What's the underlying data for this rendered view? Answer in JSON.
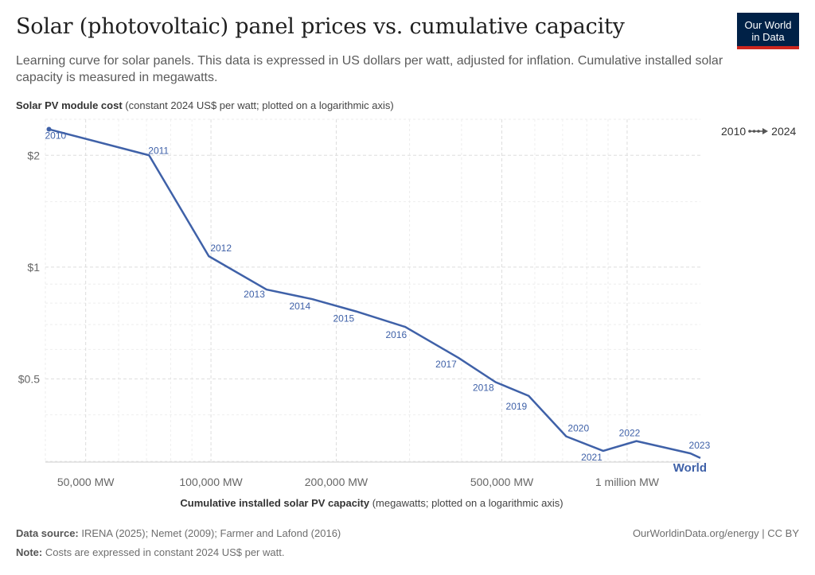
{
  "header": {
    "title": "Solar (photovoltaic) panel prices vs. cumulative capacity",
    "subtitle": "Learning curve for solar panels. This data is expressed in US dollars per watt, adjusted for inflation. Cumulative installed solar capacity is measured in megawatts."
  },
  "logo": {
    "line1": "Our World",
    "line2": "in Data",
    "bg_color": "#002147",
    "accent_color": "#ce261e"
  },
  "legend": {
    "start": "2010",
    "end": "2024"
  },
  "footer": {
    "source_label": "Data source:",
    "source_text": "IRENA (2025); Nemet (2009); Farmer and Lafond (2016)",
    "note_label": "Note:",
    "note_text": "Costs are expressed in constant 2024 US$ per watt.",
    "url": "OurWorldinData.org/energy | CC BY"
  },
  "chart_data": {
    "type": "line",
    "title": "Solar (photovoltaic) panel prices vs. cumulative capacity",
    "ylabel_bold": "Solar PV module cost",
    "ylabel_rest": "(constant 2024 US$ per watt; plotted on a logarithmic axis)",
    "xlabel_bold": "Cumulative installed solar PV capacity",
    "xlabel_rest": "(megawatts; plotted on a logarithmic axis)",
    "x_scale": "log",
    "y_scale": "log",
    "xlim": [
      40000,
      1500000
    ],
    "ylim": [
      0.3,
      2.5
    ],
    "x_ticks": [
      {
        "value": 50000,
        "label": "50,000 MW"
      },
      {
        "value": 100000,
        "label": "100,000 MW"
      },
      {
        "value": 200000,
        "label": "200,000 MW"
      },
      {
        "value": 500000,
        "label": "500,000 MW"
      },
      {
        "value": 1000000,
        "label": "1 million MW"
      }
    ],
    "y_ticks": [
      {
        "value": 2,
        "label": "$2"
      },
      {
        "value": 1,
        "label": "$1"
      },
      {
        "value": 0.5,
        "label": "$0.5"
      }
    ],
    "grid": true,
    "series": [
      {
        "name": "World",
        "color": "#3f61a8",
        "points": [
          {
            "year": "2010",
            "x": 40800,
            "y": 2.35
          },
          {
            "year": "2011",
            "x": 71000,
            "y": 2.0
          },
          {
            "year": "2012",
            "x": 98800,
            "y": 1.07
          },
          {
            "year": "2013",
            "x": 136000,
            "y": 0.87
          },
          {
            "year": "2014",
            "x": 175000,
            "y": 0.82
          },
          {
            "year": "2015",
            "x": 223000,
            "y": 0.76
          },
          {
            "year": "2016",
            "x": 293000,
            "y": 0.69
          },
          {
            "year": "2017",
            "x": 393000,
            "y": 0.57
          },
          {
            "year": "2018",
            "x": 483000,
            "y": 0.49
          },
          {
            "year": "2019",
            "x": 580000,
            "y": 0.45
          },
          {
            "year": "2020",
            "x": 714000,
            "y": 0.35
          },
          {
            "year": "2021",
            "x": 876000,
            "y": 0.32
          },
          {
            "year": "2022",
            "x": 1053000,
            "y": 0.34
          },
          {
            "year": "2023",
            "x": 1420000,
            "y": 0.315
          },
          {
            "year": "2024",
            "x": 1720000,
            "y": 0.285
          }
        ]
      }
    ]
  }
}
